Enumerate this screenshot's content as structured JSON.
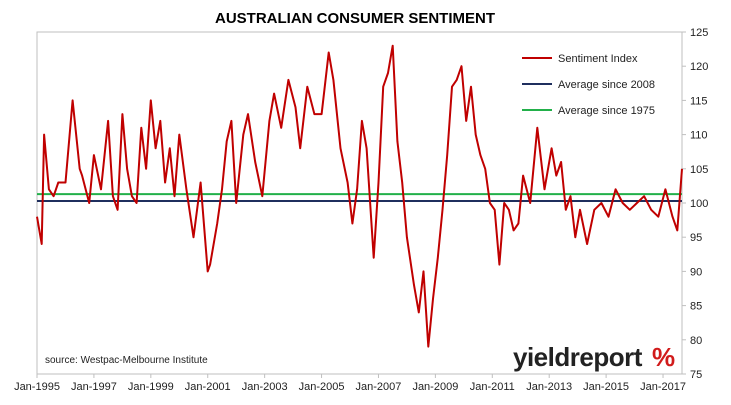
{
  "chart_data": {
    "type": "line",
    "title": "AUSTRALIAN CONSUMER SENTIMENT",
    "xlabel": "",
    "ylabel": "",
    "x_tick_labels": [
      "Jan-1995",
      "Jan-1997",
      "Jan-1999",
      "Jan-2001",
      "Jan-2003",
      "Jan-2005",
      "Jan-2007",
      "Jan-2009",
      "Jan-2011",
      "Jan-2013",
      "Jan-2015",
      "Jan-2017"
    ],
    "x_range": [
      "1995-01",
      "2017-09"
    ],
    "ylim": [
      75,
      125
    ],
    "y_ticks": [
      75,
      80,
      85,
      90,
      95,
      100,
      105,
      110,
      115,
      120,
      125
    ],
    "y_axis_side": "right",
    "grid": false,
    "legend_position": "top-right inside",
    "series": [
      {
        "name": "Sentiment Index",
        "color": "#c00000",
        "x": [
          "1995-01",
          "1995-03",
          "1995-04",
          "1995-06",
          "1995-08",
          "1995-10",
          "1996-01",
          "1996-04",
          "1996-07",
          "1996-08",
          "1996-11",
          "1997-01",
          "1997-04",
          "1997-07",
          "1997-09",
          "1997-11",
          "1998-01",
          "1998-03",
          "1998-05",
          "1998-07",
          "1998-09",
          "1998-11",
          "1999-01",
          "1999-03",
          "1999-05",
          "1999-07",
          "1999-09",
          "1999-11",
          "2000-01",
          "2000-04",
          "2000-07",
          "2000-10",
          "2001-01",
          "2001-02",
          "2001-05",
          "2001-07",
          "2001-09",
          "2001-11",
          "2002-01",
          "2002-04",
          "2002-06",
          "2002-09",
          "2002-12",
          "2003-03",
          "2003-05",
          "2003-08",
          "2003-11",
          "2004-02",
          "2004-04",
          "2004-07",
          "2004-10",
          "2005-01",
          "2005-04",
          "2005-06",
          "2005-09",
          "2005-12",
          "2006-02",
          "2006-04",
          "2006-06",
          "2006-08",
          "2006-11",
          "2007-01",
          "2007-03",
          "2007-05",
          "2007-07",
          "2007-09",
          "2007-11",
          "2008-01",
          "2008-04",
          "2008-06",
          "2008-08",
          "2008-10",
          "2008-12",
          "2009-02",
          "2009-04",
          "2009-06",
          "2009-07",
          "2009-08",
          "2009-10",
          "2009-12",
          "2010-02",
          "2010-04",
          "2010-06",
          "2010-08",
          "2010-10",
          "2010-12",
          "2011-02",
          "2011-04",
          "2011-06",
          "2011-08",
          "2011-10",
          "2011-12",
          "2012-02",
          "2012-05",
          "2012-08",
          "2012-11",
          "2013-02",
          "2013-04",
          "2013-06",
          "2013-08",
          "2013-10",
          "2013-12",
          "2014-02",
          "2014-05",
          "2014-08",
          "2014-11",
          "2015-02",
          "2015-05",
          "2015-08",
          "2015-11",
          "2016-02",
          "2016-05",
          "2016-08",
          "2016-11",
          "2017-02",
          "2017-05",
          "2017-07",
          "2017-09"
        ],
        "values": [
          98,
          94,
          110,
          102,
          101,
          103,
          103,
          115,
          105,
          104,
          100,
          107,
          102,
          112,
          101,
          99,
          113,
          105,
          101,
          100,
          111,
          105,
          115,
          108,
          112,
          103,
          108,
          101,
          110,
          102,
          95,
          103,
          90,
          91,
          97,
          102,
          109,
          112,
          100,
          110,
          113,
          106,
          101,
          112,
          116,
          111,
          118,
          114,
          108,
          117,
          113,
          113,
          122,
          118,
          108,
          103,
          97,
          102,
          112,
          108,
          92,
          103,
          117,
          119,
          123,
          109,
          103,
          95,
          88,
          84,
          90,
          79,
          86,
          92,
          99,
          107,
          112,
          117,
          118,
          120,
          112,
          117,
          110,
          107,
          105,
          100,
          99,
          91,
          100,
          99,
          96,
          97,
          104,
          100,
          111,
          102,
          108,
          104,
          106,
          99,
          101,
          95,
          99,
          94,
          99,
          100,
          98,
          102,
          100,
          99,
          100,
          101,
          99,
          98,
          102,
          98,
          96,
          105
        ]
      },
      {
        "name": "Average since 2008",
        "color": "#1f2f5e",
        "constant": 100.3
      },
      {
        "name": "Average since 1975",
        "color": "#22b04a",
        "constant": 101.3
      }
    ],
    "annotations": [
      "source: Westpac-Melbourne Institute"
    ]
  },
  "branding": {
    "text": "yieldreport",
    "pct": "%"
  }
}
